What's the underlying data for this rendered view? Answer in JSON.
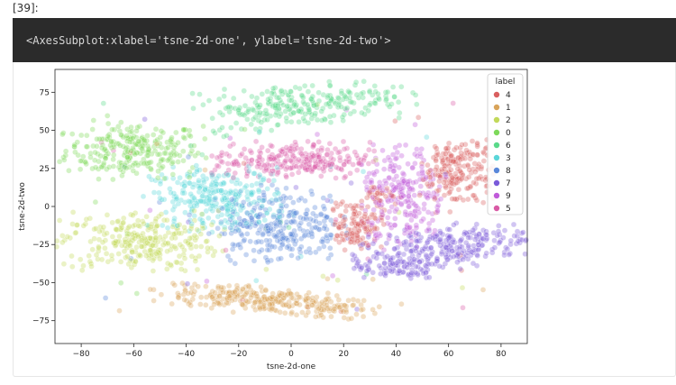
{
  "cell": {
    "prompt": "[39]:",
    "output_text": "<AxesSubplot:xlabel='tsne-2d-one', ylabel='tsne-2d-two'>"
  },
  "chart_data": {
    "type": "scatter",
    "title": "",
    "xlabel": "tsne-2d-one",
    "ylabel": "tsne-2d-two",
    "xlim": [
      -90,
      90
    ],
    "ylim": [
      -90,
      90
    ],
    "xticks": [
      -80,
      -60,
      -40,
      -20,
      0,
      20,
      40,
      60,
      80
    ],
    "yticks": [
      75,
      50,
      25,
      0,
      -25,
      -50,
      -75
    ],
    "grid": false,
    "legend": {
      "title": "label",
      "placement": "top-right",
      "entries": [
        {
          "label": "4",
          "color": "#d95f5f"
        },
        {
          "label": "1",
          "color": "#d9a45a"
        },
        {
          "label": "2",
          "color": "#c2d95a"
        },
        {
          "label": "0",
          "color": "#7dd95a"
        },
        {
          "label": "6",
          "color": "#5ad98a"
        },
        {
          "label": "3",
          "color": "#5ad6d9"
        },
        {
          "label": "8",
          "color": "#5a87d9"
        },
        {
          "label": "7",
          "color": "#7a5ad9"
        },
        {
          "label": "9",
          "color": "#c05ad9"
        },
        {
          "label": "5",
          "color": "#d95aa5"
        }
      ]
    },
    "series": [
      {
        "name": "0",
        "color": "#7dd95a",
        "clusters": [
          {
            "cx": -60,
            "cy": 37,
            "sx": 13,
            "sy": 9,
            "n": 260
          }
        ]
      },
      {
        "name": "1",
        "color": "#d9a45a",
        "clusters": [
          {
            "cx": -8,
            "cy": -62,
            "sx": 22,
            "sy": 4,
            "n": 300,
            "tilt": -0.17
          }
        ]
      },
      {
        "name": "2",
        "color": "#c2d95a",
        "clusters": [
          {
            "cx": -58,
            "cy": -23,
            "sx": 15,
            "sy": 10,
            "n": 280
          }
        ]
      },
      {
        "name": "3",
        "color": "#5ad6d9",
        "clusters": [
          {
            "cx": -27,
            "cy": 5,
            "sx": 13,
            "sy": 10,
            "n": 280
          }
        ]
      },
      {
        "name": "4",
        "color": "#d95f5f",
        "clusters": [
          {
            "cx": 63,
            "cy": 22,
            "sx": 7,
            "sy": 12,
            "n": 200
          },
          {
            "cx": 25,
            "cy": -12,
            "sx": 5,
            "sy": 8,
            "n": 120
          },
          {
            "cx": 33,
            "cy": 8,
            "sx": 4,
            "sy": 3,
            "n": 30
          }
        ]
      },
      {
        "name": "5",
        "color": "#d95aa5",
        "clusters": [
          {
            "cx": 0,
            "cy": 30,
            "sx": 15,
            "sy": 6,
            "n": 260
          }
        ]
      },
      {
        "name": "6",
        "color": "#5ad98a",
        "clusters": [
          {
            "cx": 5,
            "cy": 67,
            "sx": 20,
            "sy": 7,
            "n": 260,
            "tilt": 0.18
          }
        ]
      },
      {
        "name": "7",
        "color": "#7a5ad9",
        "clusters": [
          {
            "cx": 58,
            "cy": -27,
            "sx": 17,
            "sy": 7,
            "n": 260,
            "tilt": 0.25
          },
          {
            "cx": 40,
            "cy": -40,
            "sx": 8,
            "sy": 4,
            "n": 80
          }
        ]
      },
      {
        "name": "8",
        "color": "#5a87d9",
        "clusters": [
          {
            "cx": -5,
            "cy": -12,
            "sx": 12,
            "sy": 12,
            "n": 280
          }
        ]
      },
      {
        "name": "9",
        "color": "#c05ad9",
        "clusters": [
          {
            "cx": 43,
            "cy": 5,
            "sx": 8,
            "sy": 17,
            "n": 240
          }
        ]
      }
    ]
  }
}
